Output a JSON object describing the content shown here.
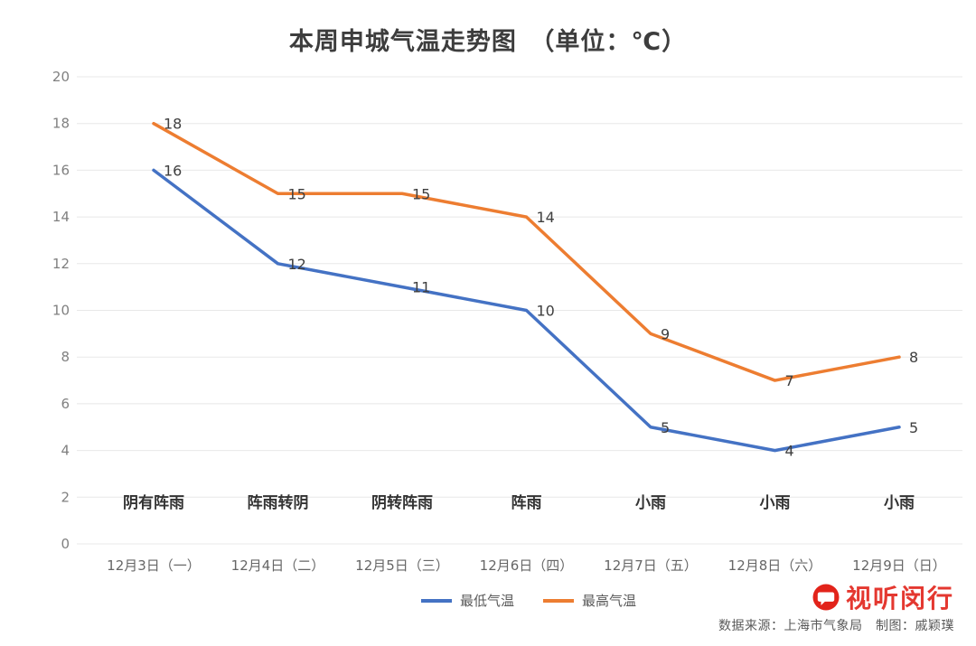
{
  "title": "本周申城气温走势图　（单位：℃）",
  "chart_data": {
    "type": "line",
    "title": "本周申城气温走势图　（单位：℃）",
    "categories": [
      "12月3日（一）",
      "12月4日（二）",
      "12月5日（三）",
      "12月6日（四）",
      "12月7日（五）",
      "12月8日（六）",
      "12月9日（日）"
    ],
    "weather_labels": [
      "阴有阵雨",
      "阵雨转阴",
      "阴转阵雨",
      "阵雨",
      "小雨",
      "小雨",
      "小雨"
    ],
    "series": [
      {
        "name": "最低气温",
        "color": "#4472c4",
        "values": [
          16,
          12,
          11,
          10,
          5,
          4,
          5
        ]
      },
      {
        "name": "最高气温",
        "color": "#ed7d31",
        "values": [
          18,
          15,
          15,
          14,
          9,
          7,
          8
        ]
      }
    ],
    "ylim": [
      0,
      20
    ],
    "ytick_step": 2,
    "grid": true,
    "legend_position": "bottom"
  },
  "footer": {
    "watermark": "视听闵行",
    "credit": "数据来源：上海市气象局　制图：戚颖璞"
  },
  "colors": {
    "line_low": "#4472c4",
    "line_high": "#ed7d31",
    "watermark_red": "#e2231a",
    "grid": "#e8e8e8",
    "title_text": "#3d3d3d"
  }
}
